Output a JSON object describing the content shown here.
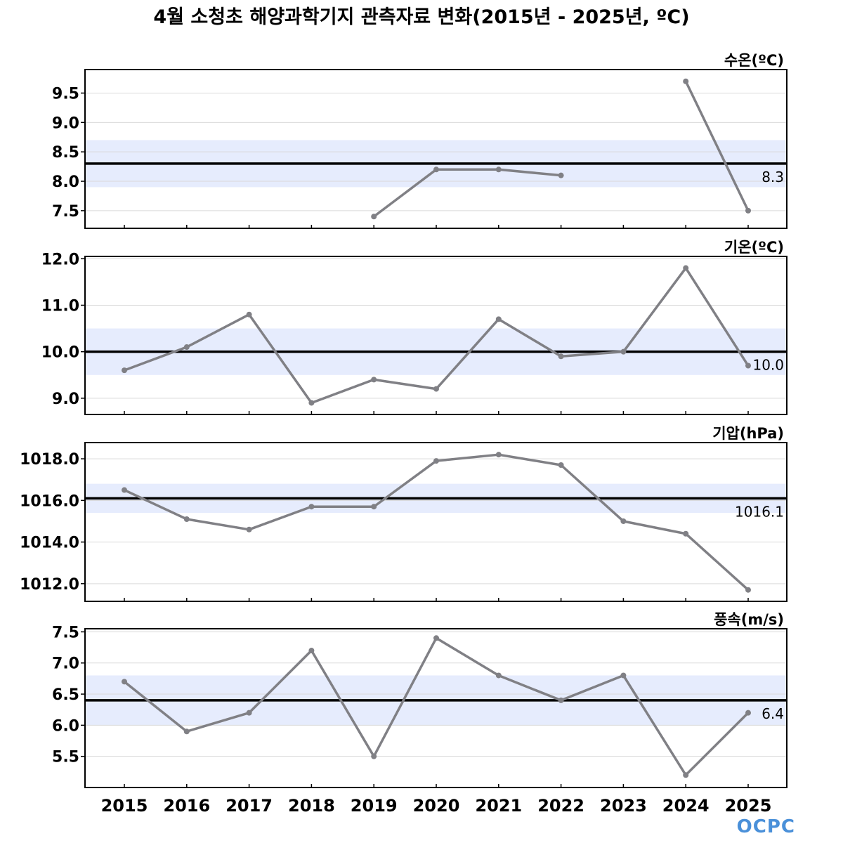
{
  "title": "4월 소청초 해양과학기지 관측자료 변화(2015년 - 2025년, ºC)",
  "logo_text": "OCPC",
  "colors": {
    "line": "#808085",
    "band": "#e6ecfd",
    "mean": "#000000",
    "grid": "#d9d9d9"
  },
  "chart_data": [
    {
      "type": "line",
      "title": "수온(ºC)",
      "x": [
        2015,
        2016,
        2017,
        2018,
        2019,
        2020,
        2021,
        2022,
        2023,
        2024,
        2025
      ],
      "values": [
        null,
        null,
        null,
        null,
        7.4,
        8.2,
        8.2,
        8.1,
        null,
        9.7,
        7.5
      ],
      "mean": 8.3,
      "mean_label": "8.3",
      "band": [
        7.9,
        8.7
      ],
      "ylim": [
        7.2,
        9.9
      ],
      "yticks": [
        7.5,
        8.0,
        8.5,
        9.0,
        9.5
      ],
      "ytick_labels": [
        "7.5",
        "8.0",
        "8.5",
        "9.0",
        "9.5"
      ],
      "grid": true
    },
    {
      "type": "line",
      "title": "기온(ºC)",
      "x": [
        2015,
        2016,
        2017,
        2018,
        2019,
        2020,
        2021,
        2022,
        2023,
        2024,
        2025
      ],
      "values": [
        9.6,
        10.1,
        10.8,
        8.9,
        9.4,
        9.2,
        10.7,
        9.9,
        10.0,
        11.8,
        9.7
      ],
      "mean": 10.0,
      "mean_label": "10.0",
      "band": [
        9.5,
        10.5
      ],
      "ylim": [
        8.65,
        12.05
      ],
      "yticks": [
        9.0,
        10.0,
        11.0,
        12.0
      ],
      "ytick_labels": [
        "9.0",
        "10.0",
        "11.0",
        "12.0"
      ],
      "grid": true
    },
    {
      "type": "line",
      "title": "기압(hPa)",
      "x": [
        2015,
        2016,
        2017,
        2018,
        2019,
        2020,
        2021,
        2022,
        2023,
        2024,
        2025
      ],
      "values": [
        1016.5,
        1015.1,
        1014.6,
        1015.7,
        1015.7,
        1017.9,
        1018.2,
        1017.7,
        1015.0,
        1014.4,
        1011.7
      ],
      "mean": 1016.1,
      "mean_label": "1016.1",
      "band": [
        1015.4,
        1016.8
      ],
      "ylim": [
        1011.15,
        1018.78
      ],
      "yticks": [
        1012.0,
        1014.0,
        1016.0,
        1018.0
      ],
      "ytick_labels": [
        "1012.0",
        "1014.0",
        "1016.0",
        "1018.0"
      ],
      "grid": true
    },
    {
      "type": "line",
      "title": "풍속(m/s)",
      "x": [
        2015,
        2016,
        2017,
        2018,
        2019,
        2020,
        2021,
        2022,
        2023,
        2024,
        2025
      ],
      "values": [
        6.7,
        5.9,
        6.2,
        7.2,
        5.5,
        7.4,
        6.8,
        6.4,
        6.8,
        5.2,
        6.2
      ],
      "mean": 6.4,
      "mean_label": "6.4",
      "band": [
        6.0,
        6.8
      ],
      "ylim": [
        5.0,
        7.55
      ],
      "yticks": [
        5.5,
        6.0,
        6.5,
        7.0,
        7.5
      ],
      "ytick_labels": [
        "5.5",
        "6.0",
        "6.5",
        "7.0",
        "7.5"
      ],
      "grid": true
    }
  ],
  "xtick_labels": [
    "2015",
    "2016",
    "2017",
    "2018",
    "2019",
    "2020",
    "2021",
    "2022",
    "2023",
    "2024",
    "2025"
  ]
}
